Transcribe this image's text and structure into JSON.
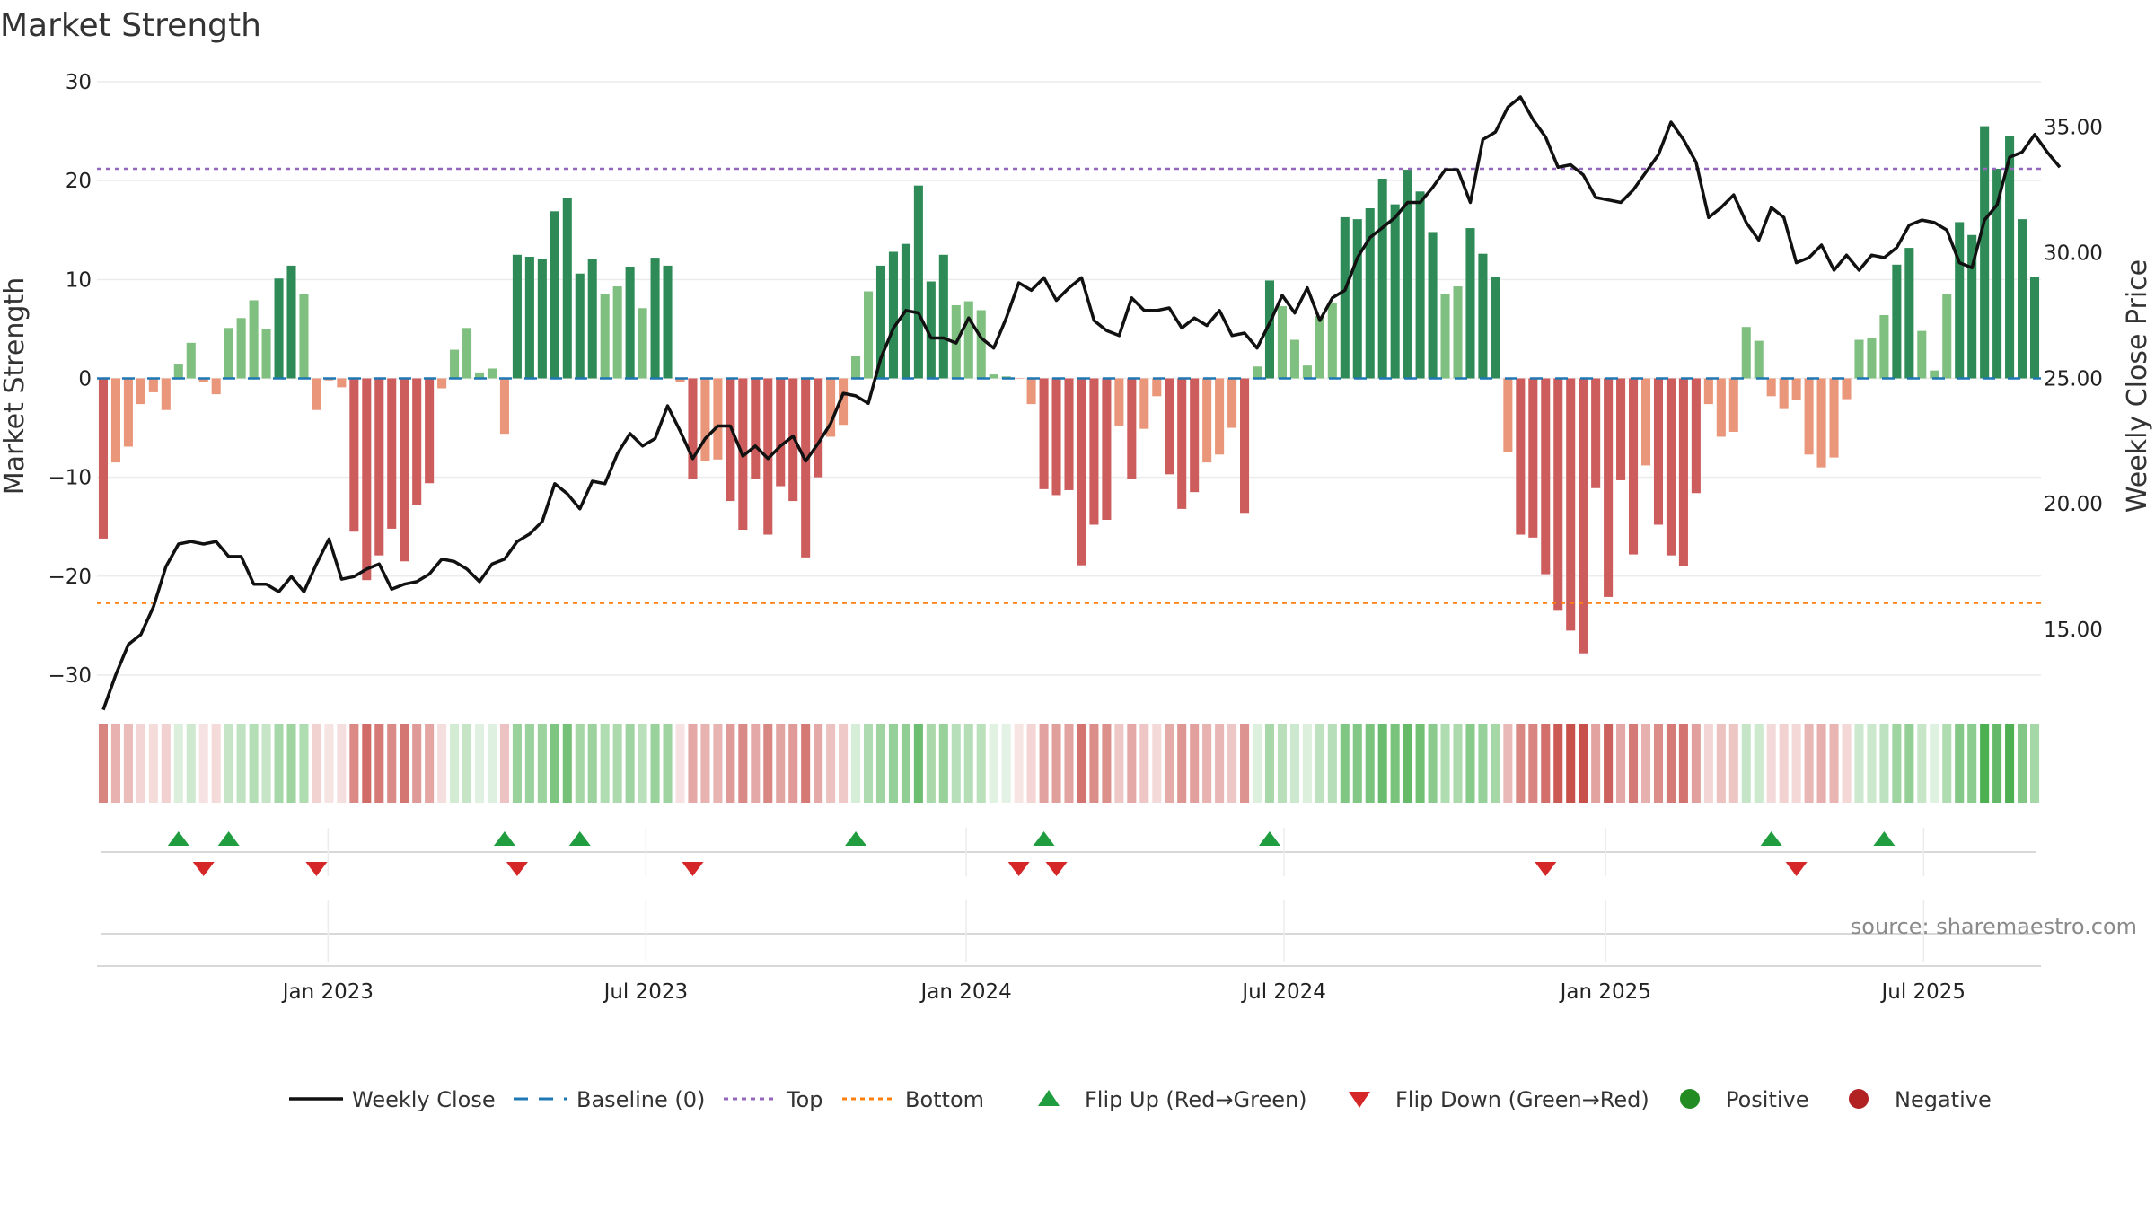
{
  "chart_data": {
    "type": "bar",
    "title": "Market Strength",
    "ylabel": "Market Strength",
    "y2label": "Weekly Close Price",
    "ylim": [
      -33,
      31
    ],
    "y2lim": [
      12.0,
      37.2
    ],
    "yticks": [
      30,
      20,
      10,
      0,
      -10,
      -20,
      -30
    ],
    "y2ticks": [
      "35.00",
      "30.00",
      "25.00",
      "20.00",
      "15.00"
    ],
    "y2tick_values": [
      35,
      30,
      25,
      20,
      15
    ],
    "top_level": 21.2,
    "bottom_level": -22.7,
    "x_ticks": [
      "Jan 2023",
      "Jul 2023",
      "Jan 2024",
      "Jul 2024",
      "Jan 2025",
      "Jul 2025"
    ],
    "x_tick_positions": [
      18.9,
      44.9,
      71.1,
      97.1,
      123.4,
      149.4
    ],
    "source": "source: sharemaestro.com",
    "colors": {
      "strong_pos": "#2e8b57",
      "weak_pos": "#7fbf7f",
      "strong_neg": "#cd5c5c",
      "weak_neg": "#e9967a",
      "price": "#111111",
      "baseline": "#1f77b4",
      "top": "#9467bd",
      "bottom": "#ff7f0e",
      "flip_up": "#1f9d3f",
      "flip_down": "#d62728",
      "positive": "#228b22",
      "negative": "#b22222"
    },
    "strength": [
      -16.2,
      -8.5,
      -6.9,
      -2.6,
      -1.4,
      -3.2,
      1.4,
      3.6,
      -0.4,
      -1.6,
      5.1,
      6.1,
      7.9,
      5.0,
      10.1,
      11.4,
      8.5,
      -3.2,
      -0.2,
      -0.9,
      -15.5,
      -20.4,
      -17.9,
      -15.2,
      -18.5,
      -12.8,
      -10.6,
      -1.0,
      2.9,
      5.1,
      0.6,
      1.0,
      -5.6,
      12.5,
      12.3,
      12.1,
      16.9,
      18.2,
      10.6,
      12.1,
      8.5,
      9.3,
      11.3,
      7.1,
      12.2,
      11.4,
      -0.4,
      -10.2,
      -8.4,
      -8.2,
      -12.4,
      -15.3,
      -10.2,
      -15.8,
      -10.9,
      -12.4,
      -18.1,
      -10.0,
      -5.9,
      -4.7,
      2.3,
      8.8,
      11.4,
      12.8,
      13.6,
      19.5,
      9.8,
      12.5,
      7.4,
      7.8,
      6.9,
      0.4,
      0.2,
      0,
      -2.6,
      -11.2,
      -11.8,
      -11.3,
      -18.9,
      -14.8,
      -14.3,
      -4.8,
      -10.2,
      -5.1,
      -1.8,
      -9.7,
      -13.2,
      -11.5,
      -8.5,
      -7.7,
      -5.0,
      -13.6,
      1.2,
      9.9,
      7.3,
      3.9,
      1.3,
      6.3,
      7.6,
      16.3,
      16.1,
      17.2,
      20.2,
      17.6,
      21.1,
      18.9,
      14.8,
      8.5,
      9.3,
      15.2,
      12.6,
      10.3,
      -7.4,
      -15.8,
      -16.1,
      -19.8,
      -23.5,
      -25.5,
      -27.8,
      -11.1,
      -22.1,
      -10.3,
      -17.8,
      -8.8,
      -14.8,
      -17.9,
      -19.0,
      -11.6,
      -2.6,
      -5.9,
      -5.4,
      5.2,
      3.8,
      -1.8,
      -3.1,
      -2.2,
      -7.7,
      -9.0,
      -8.0,
      -2.1,
      3.9,
      4.1,
      6.4,
      11.5,
      13.2,
      4.8,
      0.8,
      8.5,
      15.8,
      14.5,
      25.5,
      21.2,
      24.5,
      16.1,
      10.3
    ],
    "price": [
      11.8,
      13.2,
      14.4,
      14.8,
      15.9,
      17.5,
      18.4,
      18.5,
      18.4,
      18.5,
      17.9,
      17.9,
      16.8,
      16.8,
      16.5,
      17.1,
      16.5,
      17.6,
      18.6,
      17.0,
      17.1,
      17.4,
      17.6,
      16.6,
      16.8,
      16.9,
      17.2,
      17.8,
      17.7,
      17.4,
      16.9,
      17.6,
      17.8,
      18.5,
      18.8,
      19.3,
      20.8,
      20.4,
      19.8,
      20.9,
      20.8,
      22.0,
      22.8,
      22.3,
      22.6,
      23.9,
      22.9,
      21.8,
      22.6,
      23.1,
      23.1,
      21.9,
      22.3,
      21.8,
      22.3,
      22.7,
      21.7,
      22.4,
      23.2,
      24.4,
      24.3,
      24.0,
      25.8,
      27.0,
      27.7,
      27.6,
      26.6,
      26.6,
      26.4,
      27.4,
      26.6,
      26.2,
      27.4,
      28.8,
      28.5,
      29.0,
      28.1,
      28.6,
      29.0,
      27.3,
      26.9,
      26.7,
      28.2,
      27.7,
      27.7,
      27.8,
      27.0,
      27.4,
      27.1,
      27.7,
      26.7,
      26.8,
      26.2,
      27.2,
      28.3,
      27.6,
      28.6,
      27.3,
      28.2,
      28.5,
      29.8,
      30.6,
      31.0,
      31.4,
      32.0,
      32.0,
      32.6,
      33.3,
      33.3,
      32.0,
      34.5,
      34.8,
      35.8,
      36.2,
      35.3,
      34.6,
      33.4,
      33.5,
      33.1,
      32.2,
      32.1,
      32.0,
      32.5,
      33.2,
      33.9,
      35.2,
      34.5,
      33.6,
      31.4,
      31.8,
      32.3,
      31.2,
      30.5,
      31.8,
      31.4,
      29.6,
      29.8,
      30.3,
      29.3,
      29.9,
      29.3,
      29.9,
      29.8,
      30.2,
      31.1,
      31.3,
      31.2,
      30.9,
      29.6,
      29.4,
      31.3,
      31.9,
      33.8,
      34.0,
      34.7,
      34.0,
      33.4
    ],
    "heat_strip": [
      -16.2,
      -8.5,
      -6.9,
      -2.6,
      -1.4,
      -3.2,
      1.4,
      3.6,
      -0.4,
      -1.6,
      5.1,
      6.1,
      7.9,
      5.0,
      10.1,
      11.4,
      8.5,
      -3.2,
      -0.2,
      -0.9,
      -15.5,
      -20.4,
      -17.9,
      -15.2,
      -18.5,
      -12.8,
      -10.6,
      -1.0,
      2.9,
      5.1,
      0.6,
      1.0,
      -5.6,
      12.5,
      12.3,
      12.1,
      16.9,
      18.2,
      10.6,
      12.1,
      8.5,
      9.3,
      11.3,
      7.1,
      12.2,
      11.4,
      -0.4,
      -10.2,
      -8.4,
      -8.2,
      -12.4,
      -15.3,
      -10.2,
      -15.8,
      -10.9,
      -12.4,
      -18.1,
      -10.0,
      -5.9,
      -4.7,
      2.3,
      8.8,
      11.4,
      12.8,
      13.6,
      19.5,
      9.8,
      12.5,
      7.4,
      7.8,
      6.9,
      0.4,
      0.2,
      0,
      -2.6,
      -11.2,
      -11.8,
      -11.3,
      -18.9,
      -14.8,
      -14.3,
      -4.8,
      -10.2,
      -5.1,
      -1.8,
      -9.7,
      -13.2,
      -11.5,
      -8.5,
      -7.7,
      -5.0,
      -13.6,
      1.2,
      9.9,
      7.3,
      3.9,
      1.3,
      6.3,
      7.6,
      16.3,
      16.1,
      17.2,
      20.2,
      17.6,
      21.1,
      18.9,
      14.8,
      8.5,
      9.3,
      15.2,
      12.6,
      10.3,
      -7.4,
      -15.8,
      -16.1,
      -19.8,
      -23.5,
      -25.5,
      -27.8,
      -11.1,
      -22.1,
      -10.3,
      -17.8,
      -8.8,
      -14.8,
      -17.9,
      -19.0,
      -11.6,
      -2.6,
      -5.9,
      -5.4,
      5.2,
      3.8,
      -1.8,
      -3.1,
      -2.2,
      -7.7,
      -9.0,
      -8.0,
      -2.1,
      3.9,
      4.1,
      6.4,
      11.5,
      13.2,
      4.8,
      0.8,
      8.5,
      15.8,
      14.5,
      25.5,
      21.2,
      24.5,
      16.1,
      10.3
    ],
    "flip_up_weeks": [
      6,
      10,
      32,
      38,
      60,
      75,
      93,
      133,
      142
    ],
    "flip_down_weeks": [
      8,
      17,
      33,
      47,
      73,
      76,
      115,
      135
    ],
    "legend": [
      {
        "key": "weekly-close",
        "label": "Weekly Close"
      },
      {
        "key": "baseline",
        "label": "Baseline (0)"
      },
      {
        "key": "top",
        "label": "Top"
      },
      {
        "key": "bottom",
        "label": "Bottom"
      },
      {
        "key": "flip-up",
        "label": "Flip Up (Red→Green)"
      },
      {
        "key": "flip-down",
        "label": "Flip Down (Green→Red)"
      },
      {
        "key": "positive",
        "label": "Positive"
      },
      {
        "key": "negative",
        "label": "Negative"
      }
    ]
  }
}
